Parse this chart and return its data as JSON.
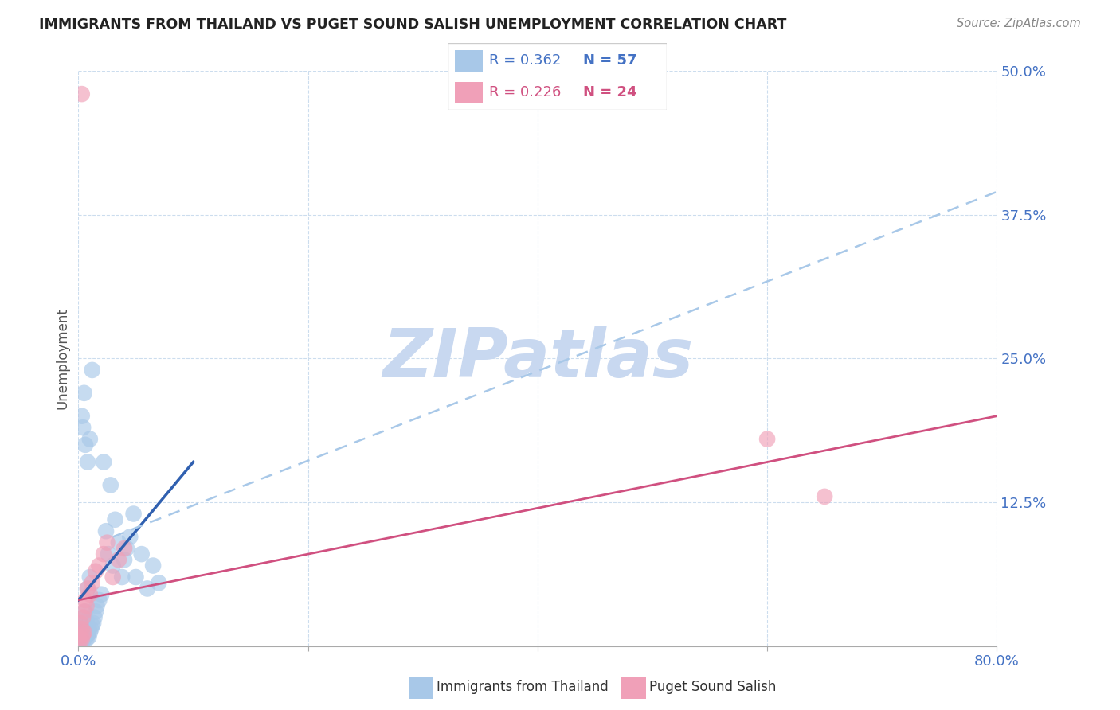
{
  "title": "IMMIGRANTS FROM THAILAND VS PUGET SOUND SALISH UNEMPLOYMENT CORRELATION CHART",
  "source": "Source: ZipAtlas.com",
  "ylabel": "Unemployment",
  "xlim": [
    0.0,
    0.8
  ],
  "ylim": [
    0.0,
    0.5
  ],
  "yticks": [
    0.0,
    0.125,
    0.25,
    0.375,
    0.5
  ],
  "ytick_labels": [
    "",
    "12.5%",
    "25.0%",
    "37.5%",
    "50.0%"
  ],
  "xticks": [
    0.0,
    0.2,
    0.4,
    0.6,
    0.8
  ],
  "xtick_labels": [
    "0.0%",
    "",
    "",
    "",
    "80.0%"
  ],
  "blue_color": "#A8C8E8",
  "pink_color": "#F0A0B8",
  "blue_line_color": "#3060B0",
  "pink_line_color": "#D05080",
  "dashed_line_color": "#A8C8E8",
  "watermark": "ZIPatlas",
  "watermark_color": "#C8D8F0",
  "legend_blue_r": "R = 0.362",
  "legend_blue_n": "N = 57",
  "legend_pink_r": "R = 0.226",
  "legend_pink_n": "N = 24",
  "legend_text_color_blue": "#4472C4",
  "legend_text_color_pink": "#D05080",
  "blue_scatter_x": [
    0.001,
    0.002,
    0.002,
    0.003,
    0.003,
    0.003,
    0.004,
    0.004,
    0.004,
    0.005,
    0.005,
    0.005,
    0.005,
    0.006,
    0.006,
    0.006,
    0.007,
    0.007,
    0.007,
    0.008,
    0.008,
    0.009,
    0.009,
    0.01,
    0.01,
    0.011,
    0.012,
    0.013,
    0.014,
    0.015,
    0.016,
    0.018,
    0.02,
    0.022,
    0.024,
    0.026,
    0.028,
    0.03,
    0.032,
    0.035,
    0.038,
    0.04,
    0.042,
    0.045,
    0.048,
    0.05,
    0.055,
    0.06,
    0.065,
    0.07,
    0.003,
    0.004,
    0.005,
    0.006,
    0.008,
    0.01,
    0.012
  ],
  "blue_scatter_y": [
    0.005,
    0.008,
    0.012,
    0.003,
    0.006,
    0.015,
    0.004,
    0.009,
    0.018,
    0.007,
    0.01,
    0.02,
    0.025,
    0.008,
    0.012,
    0.03,
    0.006,
    0.014,
    0.022,
    0.01,
    0.05,
    0.008,
    0.015,
    0.012,
    0.06,
    0.015,
    0.018,
    0.02,
    0.025,
    0.03,
    0.035,
    0.04,
    0.045,
    0.16,
    0.1,
    0.08,
    0.14,
    0.07,
    0.11,
    0.09,
    0.06,
    0.075,
    0.085,
    0.095,
    0.115,
    0.06,
    0.08,
    0.05,
    0.07,
    0.055,
    0.2,
    0.19,
    0.22,
    0.175,
    0.16,
    0.18,
    0.24
  ],
  "pink_scatter_x": [
    0.001,
    0.002,
    0.002,
    0.003,
    0.003,
    0.004,
    0.004,
    0.005,
    0.005,
    0.006,
    0.007,
    0.008,
    0.01,
    0.012,
    0.015,
    0.018,
    0.022,
    0.025,
    0.03,
    0.035,
    0.04,
    0.6,
    0.65,
    0.003
  ],
  "pink_scatter_y": [
    0.005,
    0.008,
    0.02,
    0.006,
    0.015,
    0.01,
    0.025,
    0.012,
    0.03,
    0.04,
    0.035,
    0.05,
    0.045,
    0.055,
    0.065,
    0.07,
    0.08,
    0.09,
    0.06,
    0.075,
    0.085,
    0.18,
    0.13,
    0.48
  ],
  "blue_trend_x": [
    0.0,
    0.1
  ],
  "blue_trend_y": [
    0.04,
    0.16
  ],
  "pink_trend_x": [
    0.0,
    0.8
  ],
  "pink_trend_y": [
    0.04,
    0.2
  ],
  "dashed_trend_x": [
    0.03,
    0.8
  ],
  "dashed_trend_y": [
    0.095,
    0.395
  ]
}
